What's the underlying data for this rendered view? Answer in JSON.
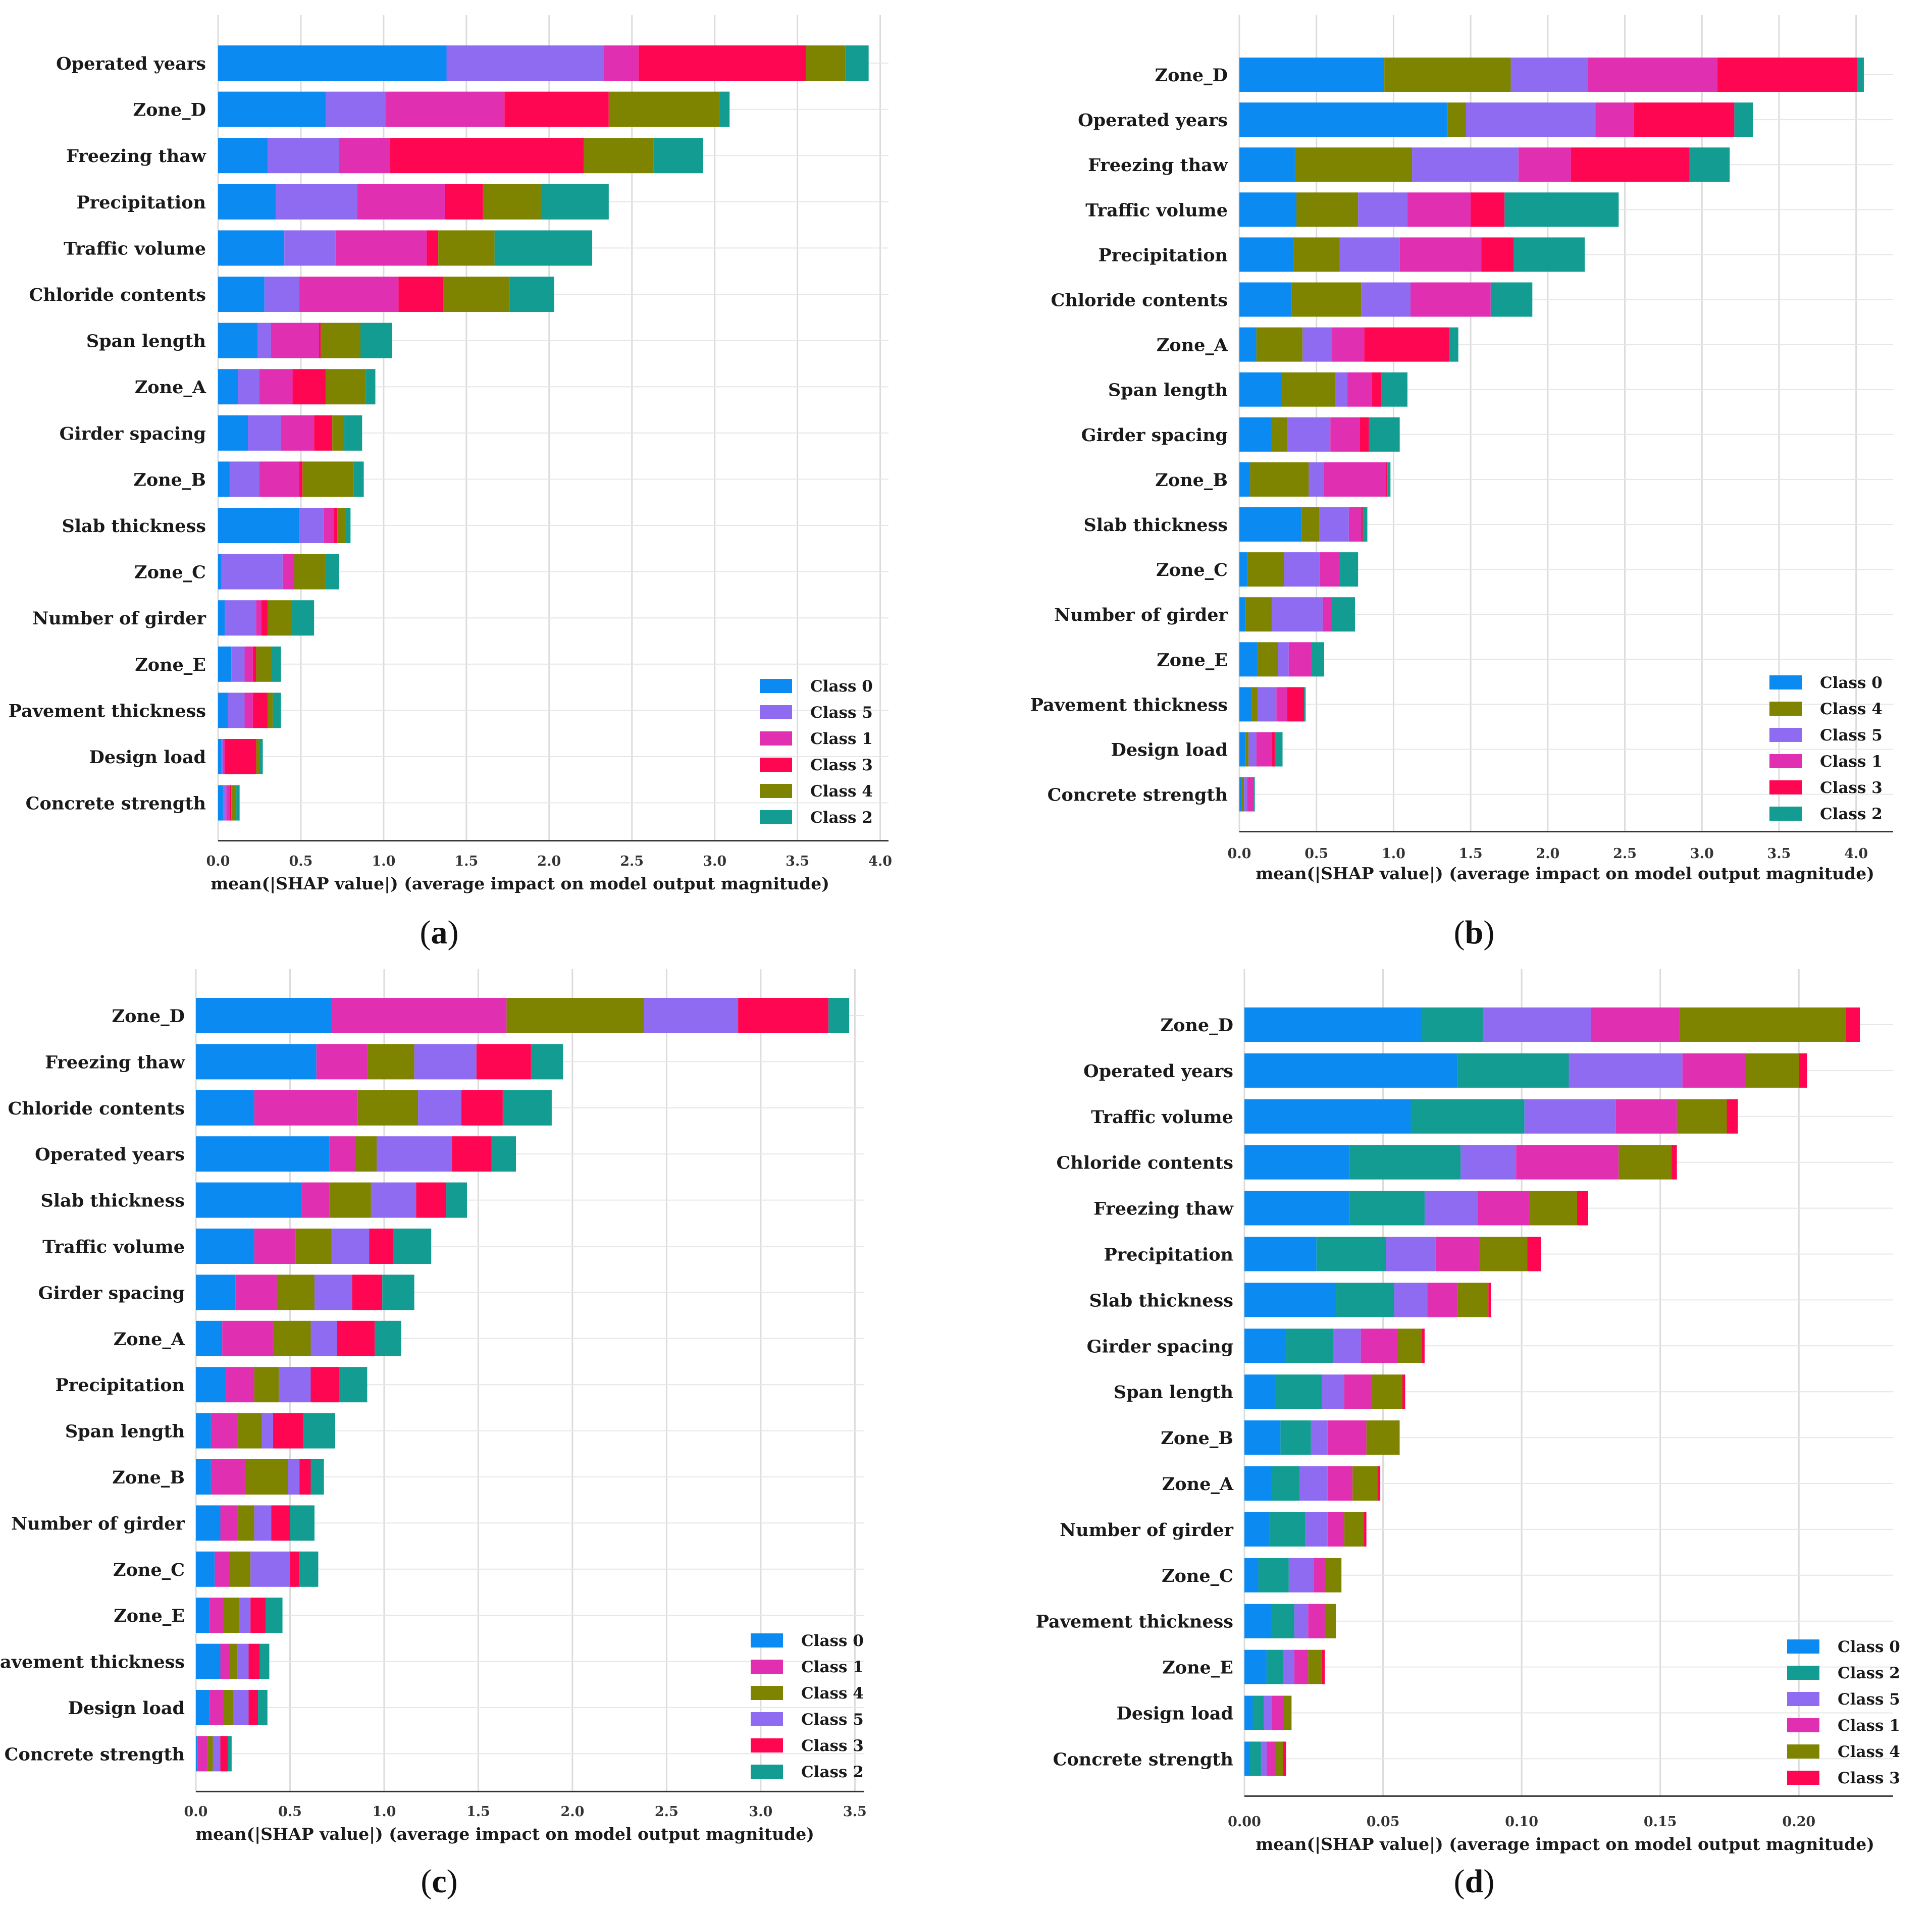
{
  "figure": {
    "captions": [
      {
        "open": "(",
        "letter": "a",
        "close": ")"
      },
      {
        "open": "(",
        "letter": "b",
        "close": ")"
      },
      {
        "open": "(",
        "letter": "c",
        "close": ")"
      },
      {
        "open": "(",
        "letter": "d",
        "close": ")"
      }
    ]
  },
  "class_colors": {
    "Class 0": "#0b8bf2",
    "Class 1": "#e12fb1",
    "Class 2": "#139c92",
    "Class 3": "#ff0652",
    "Class 4": "#7f8400",
    "Class 5": "#8e6bf1"
  },
  "chart_data": [
    {
      "type": "bar",
      "orientation": "horizontal-stacked",
      "panel": "a",
      "xlabel": "mean(|SHAP value|) (average impact on model output magnitude)",
      "xlim": [
        0,
        4.05
      ],
      "xticks": [
        "0.0",
        "0.5",
        "1.0",
        "1.5",
        "2.0",
        "2.5",
        "3.0",
        "3.5",
        "4.0"
      ],
      "xtick_values": [
        0,
        0.5,
        1,
        1.5,
        2,
        2.5,
        3,
        3.5,
        4
      ],
      "categories": [
        "Operated years",
        "Zone_D",
        "Freezing thaw",
        "Precipitation",
        "Traffic volume",
        "Chloride contents",
        "Span length",
        "Zone_A",
        "Girder spacing",
        "Zone_B",
        "Slab thickness",
        "Zone_C",
        "Number of girder",
        "Zone_E",
        "Pavement thickness",
        "Design load",
        "Concrete strength"
      ],
      "legend": [
        "Class 0",
        "Class 5",
        "Class 1",
        "Class 3",
        "Class 4",
        "Class 2"
      ],
      "series": [
        {
          "name": "Class 0",
          "values": [
            1.38,
            0.65,
            0.3,
            0.35,
            0.4,
            0.28,
            0.24,
            0.12,
            0.18,
            0.07,
            0.49,
            0.02,
            0.04,
            0.08,
            0.06,
            0.02,
            0.03
          ]
        },
        {
          "name": "Class 5",
          "values": [
            0.95,
            0.36,
            0.43,
            0.49,
            0.31,
            0.21,
            0.08,
            0.13,
            0.2,
            0.18,
            0.15,
            0.37,
            0.19,
            0.08,
            0.1,
            0.01,
            0.02
          ]
        },
        {
          "name": "Class 1",
          "values": [
            0.21,
            0.72,
            0.31,
            0.53,
            0.55,
            0.6,
            0.29,
            0.2,
            0.2,
            0.24,
            0.06,
            0.07,
            0.03,
            0.05,
            0.05,
            0.01,
            0.02
          ]
        },
        {
          "name": "Class 3",
          "values": [
            1.01,
            0.63,
            1.17,
            0.23,
            0.07,
            0.27,
            0.01,
            0.2,
            0.11,
            0.02,
            0.02,
            0.0,
            0.04,
            0.02,
            0.09,
            0.19,
            0.01
          ]
        },
        {
          "name": "Class 4",
          "values": [
            0.24,
            0.67,
            0.42,
            0.35,
            0.34,
            0.4,
            0.24,
            0.24,
            0.07,
            0.31,
            0.05,
            0.19,
            0.14,
            0.09,
            0.03,
            0.02,
            0.03
          ]
        },
        {
          "name": "Class 2",
          "values": [
            0.14,
            0.06,
            0.3,
            0.41,
            0.59,
            0.27,
            0.19,
            0.06,
            0.11,
            0.06,
            0.03,
            0.08,
            0.14,
            0.06,
            0.05,
            0.02,
            0.02
          ]
        }
      ]
    },
    {
      "type": "bar",
      "orientation": "horizontal-stacked",
      "panel": "b",
      "xlabel": "mean(|SHAP value|) (average impact on model output magnitude)",
      "xlim": [
        0,
        4.24
      ],
      "xticks": [
        "0.0",
        "0.5",
        "1.0",
        "1.5",
        "2.0",
        "2.5",
        "3.0",
        "3.5",
        "4.0"
      ],
      "xtick_values": [
        0,
        0.5,
        1,
        1.5,
        2,
        2.5,
        3,
        3.5,
        4
      ],
      "categories": [
        "Zone_D",
        "Operated years",
        "Freezing thaw",
        "Traffic volume",
        "Precipitation",
        "Chloride contents",
        "Zone_A",
        "Span length",
        "Girder spacing",
        "Zone_B",
        "Slab thickness",
        "Zone_C",
        "Number of girder",
        "Zone_E",
        "Pavement thickness",
        "Design load",
        "Concrete strength"
      ],
      "legend": [
        "Class 0",
        "Class 4",
        "Class 5",
        "Class 1",
        "Class 3",
        "Class 2"
      ],
      "series": [
        {
          "name": "Class 0",
          "values": [
            0.94,
            1.35,
            0.36,
            0.37,
            0.35,
            0.34,
            0.11,
            0.27,
            0.21,
            0.07,
            0.4,
            0.05,
            0.04,
            0.12,
            0.08,
            0.04,
            0.01
          ]
        },
        {
          "name": "Class 4",
          "values": [
            0.82,
            0.12,
            0.76,
            0.4,
            0.3,
            0.45,
            0.3,
            0.35,
            0.1,
            0.38,
            0.12,
            0.24,
            0.17,
            0.13,
            0.04,
            0.02,
            0.02
          ]
        },
        {
          "name": "Class 5",
          "values": [
            0.5,
            0.84,
            0.69,
            0.32,
            0.39,
            0.32,
            0.19,
            0.08,
            0.28,
            0.1,
            0.19,
            0.23,
            0.33,
            0.07,
            0.12,
            0.05,
            0.02
          ]
        },
        {
          "name": "Class 1",
          "values": [
            0.84,
            0.25,
            0.34,
            0.41,
            0.53,
            0.52,
            0.21,
            0.16,
            0.19,
            0.4,
            0.08,
            0.13,
            0.06,
            0.15,
            0.07,
            0.1,
            0.04
          ]
        },
        {
          "name": "Class 3",
          "values": [
            0.91,
            0.65,
            0.77,
            0.22,
            0.21,
            0.0,
            0.55,
            0.06,
            0.06,
            0.01,
            0.01,
            0.0,
            0.0,
            0.0,
            0.11,
            0.02,
            0.0
          ]
        },
        {
          "name": "Class 2",
          "values": [
            0.04,
            0.12,
            0.26,
            0.74,
            0.46,
            0.27,
            0.06,
            0.17,
            0.2,
            0.02,
            0.03,
            0.12,
            0.15,
            0.08,
            0.01,
            0.05,
            0.01
          ]
        }
      ]
    },
    {
      "type": "bar",
      "orientation": "horizontal-stacked",
      "panel": "c",
      "xlabel": "mean(|SHAP value|) (average impact on model output magnitude)",
      "xlim": [
        0,
        3.55
      ],
      "xticks": [
        "0.0",
        "0.5",
        "1.0",
        "1.5",
        "2.0",
        "2.5",
        "3.0",
        "3.5"
      ],
      "xtick_values": [
        0,
        0.5,
        1,
        1.5,
        2,
        2.5,
        3,
        3.5
      ],
      "categories": [
        "Zone_D",
        "Freezing thaw",
        "Chloride contents",
        "Operated years",
        "Slab thickness",
        "Traffic volume",
        "Girder spacing",
        "Zone_A",
        "Precipitation",
        "Span length",
        "Zone_B",
        "Number of girder",
        "Zone_C",
        "Zone_E",
        "Pavement thickness",
        "Design load",
        "Concrete strength"
      ],
      "legend": [
        "Class 0",
        "Class 1",
        "Class 4",
        "Class 5",
        "Class 3",
        "Class 2"
      ],
      "series": [
        {
          "name": "Class 0",
          "values": [
            0.72,
            0.64,
            0.31,
            0.71,
            0.56,
            0.31,
            0.21,
            0.14,
            0.16,
            0.08,
            0.08,
            0.13,
            0.1,
            0.07,
            0.13,
            0.07,
            0.01
          ]
        },
        {
          "name": "Class 1",
          "values": [
            0.93,
            0.27,
            0.55,
            0.14,
            0.15,
            0.22,
            0.22,
            0.27,
            0.15,
            0.14,
            0.18,
            0.09,
            0.08,
            0.08,
            0.05,
            0.08,
            0.05
          ]
        },
        {
          "name": "Class 4",
          "values": [
            0.73,
            0.25,
            0.32,
            0.11,
            0.22,
            0.19,
            0.2,
            0.2,
            0.13,
            0.13,
            0.23,
            0.09,
            0.11,
            0.08,
            0.04,
            0.05,
            0.03
          ]
        },
        {
          "name": "Class 5",
          "values": [
            0.5,
            0.33,
            0.23,
            0.4,
            0.24,
            0.2,
            0.2,
            0.14,
            0.17,
            0.06,
            0.06,
            0.09,
            0.21,
            0.06,
            0.06,
            0.08,
            0.04
          ]
        },
        {
          "name": "Class 3",
          "values": [
            0.48,
            0.29,
            0.22,
            0.21,
            0.16,
            0.13,
            0.16,
            0.2,
            0.15,
            0.16,
            0.06,
            0.1,
            0.05,
            0.08,
            0.06,
            0.05,
            0.04
          ]
        },
        {
          "name": "Class 2",
          "values": [
            0.11,
            0.17,
            0.26,
            0.13,
            0.11,
            0.2,
            0.17,
            0.14,
            0.15,
            0.17,
            0.07,
            0.13,
            0.1,
            0.09,
            0.05,
            0.05,
            0.02
          ]
        }
      ]
    },
    {
      "type": "bar",
      "orientation": "horizontal-stacked",
      "panel": "d",
      "xlabel": "mean(|SHAP value|) (average impact on model output magnitude)",
      "xlim": [
        0,
        0.234
      ],
      "xticks": [
        "0.00",
        "0.05",
        "0.10",
        "0.15",
        "0.20"
      ],
      "xtick_values": [
        0,
        0.05,
        0.1,
        0.15,
        0.2
      ],
      "categories": [
        "Zone_D",
        "Operated years",
        "Traffic volume",
        "Chloride contents",
        "Freezing thaw",
        "Precipitation",
        "Slab thickness",
        "Girder spacing",
        "Span length",
        "Zone_B",
        "Zone_A",
        "Number of girder",
        "Zone_C",
        "Pavement thickness",
        "Zone_E",
        "Design load",
        "Concrete strength"
      ],
      "legend": [
        "Class 0",
        "Class 2",
        "Class 5",
        "Class 1",
        "Class 4",
        "Class 3"
      ],
      "series": [
        {
          "name": "Class 0",
          "values": [
            0.064,
            0.077,
            0.06,
            0.038,
            0.038,
            0.026,
            0.033,
            0.015,
            0.011,
            0.013,
            0.01,
            0.009,
            0.005,
            0.01,
            0.008,
            0.003,
            0.002
          ]
        },
        {
          "name": "Class 2",
          "values": [
            0.022,
            0.04,
            0.041,
            0.04,
            0.027,
            0.025,
            0.021,
            0.017,
            0.017,
            0.011,
            0.01,
            0.013,
            0.011,
            0.008,
            0.006,
            0.004,
            0.004
          ]
        },
        {
          "name": "Class 5",
          "values": [
            0.039,
            0.041,
            0.033,
            0.02,
            0.019,
            0.018,
            0.012,
            0.01,
            0.008,
            0.006,
            0.01,
            0.008,
            0.009,
            0.005,
            0.004,
            0.003,
            0.002
          ]
        },
        {
          "name": "Class 1",
          "values": [
            0.032,
            0.023,
            0.022,
            0.037,
            0.019,
            0.016,
            0.011,
            0.013,
            0.01,
            0.014,
            0.009,
            0.006,
            0.004,
            0.006,
            0.005,
            0.004,
            0.003
          ]
        },
        {
          "name": "Class 4",
          "values": [
            0.06,
            0.019,
            0.018,
            0.019,
            0.017,
            0.017,
            0.011,
            0.009,
            0.011,
            0.012,
            0.009,
            0.007,
            0.006,
            0.004,
            0.005,
            0.003,
            0.003
          ]
        },
        {
          "name": "Class 3",
          "values": [
            0.005,
            0.003,
            0.004,
            0.002,
            0.004,
            0.005,
            0.001,
            0.001,
            0.001,
            0.0,
            0.001,
            0.001,
            0.0,
            0.0,
            0.001,
            0.0,
            0.001
          ]
        }
      ]
    }
  ]
}
